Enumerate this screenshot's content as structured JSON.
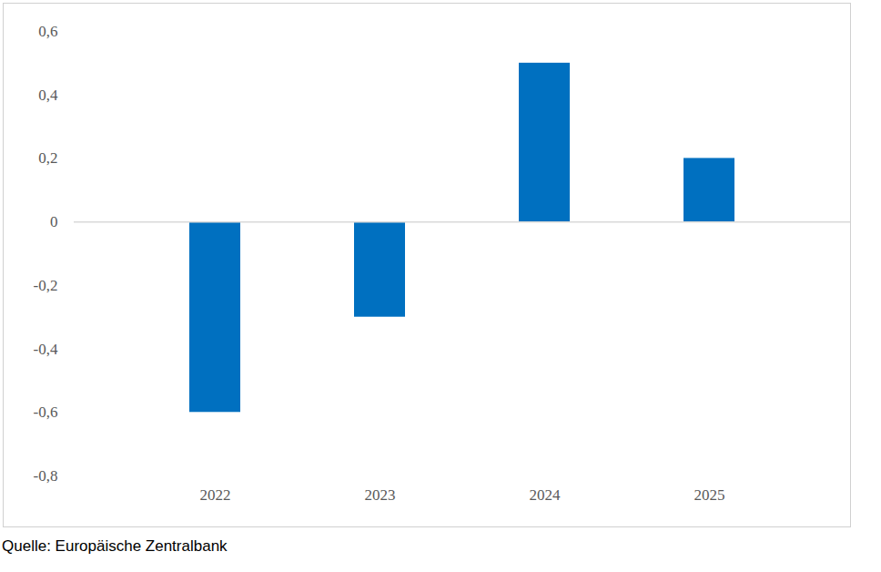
{
  "chart_data": {
    "type": "bar",
    "caption": "Quelle: Europäische Zentralbank",
    "categories": [
      "2022",
      "2023",
      "2024",
      "2025"
    ],
    "values": [
      -0.6,
      -0.3,
      0.5,
      0.2
    ],
    "color": "#0070c0",
    "ylim": [
      -0.8,
      0.6
    ],
    "yticks": [
      {
        "value": -0.8,
        "label": "-0,8"
      },
      {
        "value": -0.6,
        "label": "-0,6"
      },
      {
        "value": -0.4,
        "label": "-0,4"
      },
      {
        "value": -0.2,
        "label": "-0,2"
      },
      0,
      {
        "value": 0.2,
        "label": "0,2"
      },
      {
        "value": 0.4,
        "label": "0,4"
      },
      {
        "value": 0.6,
        "label": "0,6"
      }
    ],
    "grid": false
  }
}
